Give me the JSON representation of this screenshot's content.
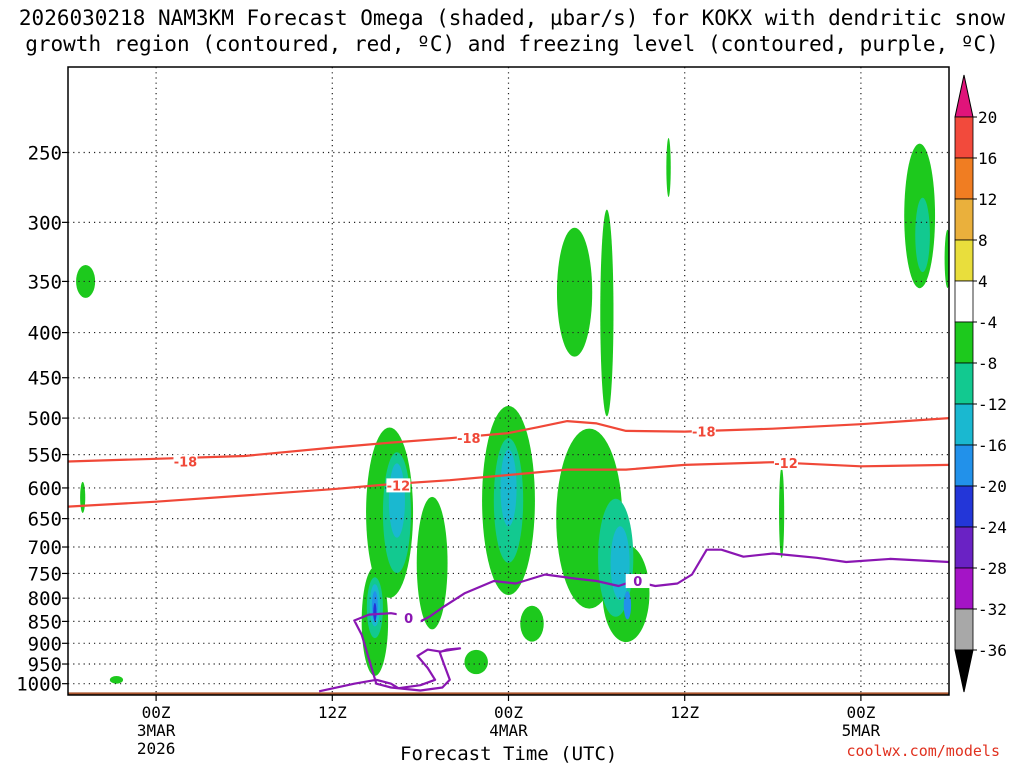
{
  "title_line1": "2026030218 NAM3KM Forecast Omega (shaded, µbar/s) for KOKX with dendritic snow",
  "title_line2": "growth region (contoured, red, ºC) and freezing level (contoured, purple, ºC)",
  "credit": "coolwx.com/models",
  "chart_data": {
    "type": "heatmap",
    "title": "2026030218 NAM3KM Forecast Omega (shaded, µbar/s) for KOKX with dendritic snow growth region (contoured, red, ºC) and freezing level (contoured, purple, ºC)",
    "xlabel": "Forecast Time (UTC)",
    "ylabel": "",
    "x_units": "hours since 2026-03-02 18Z",
    "xlim": [
      0,
      60
    ],
    "y_scale": "log-pressure",
    "ylim": [
      1030,
      200
    ],
    "grid": true,
    "x_ticks": [
      {
        "x": 6,
        "lines": [
          "00Z",
          "3MAR",
          "2026"
        ]
      },
      {
        "x": 18,
        "lines": [
          "12Z"
        ]
      },
      {
        "x": 30,
        "lines": [
          "00Z",
          "4MAR"
        ]
      },
      {
        "x": 42,
        "lines": [
          "12Z"
        ]
      },
      {
        "x": 54,
        "lines": [
          "00Z",
          "5MAR"
        ]
      }
    ],
    "y_ticks": [
      250,
      300,
      350,
      400,
      450,
      500,
      550,
      600,
      650,
      700,
      750,
      800,
      850,
      900,
      950,
      1000
    ],
    "colorbar": {
      "labels": [
        "20",
        "16",
        "12",
        "8",
        "4",
        "-4",
        "-8",
        "-12",
        "-16",
        "-20",
        "-24",
        "-28",
        "-32",
        "-36"
      ],
      "bins": [
        {
          "lo": 16,
          "hi": 20,
          "color": "#f24a3c"
        },
        {
          "lo": 12,
          "hi": 16,
          "color": "#f07d22"
        },
        {
          "lo": 8,
          "hi": 12,
          "color": "#eab03c"
        },
        {
          "lo": 4,
          "hi": 8,
          "color": "#e9de3c"
        },
        {
          "lo": -4,
          "hi": 4,
          "color": "#ffffff"
        },
        {
          "lo": -8,
          "hi": -4,
          "color": "#1dc91d"
        },
        {
          "lo": -12,
          "hi": -8,
          "color": "#12c990"
        },
        {
          "lo": -16,
          "hi": -12,
          "color": "#1ab8d0"
        },
        {
          "lo": -20,
          "hi": -16,
          "color": "#2291ea"
        },
        {
          "lo": -24,
          "hi": -20,
          "color": "#2336d8"
        },
        {
          "lo": -28,
          "hi": -24,
          "color": "#6a22c4"
        },
        {
          "lo": -32,
          "hi": -28,
          "color": "#a414c6"
        },
        {
          "lo": -36,
          "hi": -32,
          "color": "#a8a8a8"
        }
      ],
      "over_color": "#e0147a",
      "under_color": "#000000"
    },
    "omega_features": [
      {
        "bin": 4,
        "x": 0.1,
        "p": 265,
        "w": 0.35,
        "h": 45
      },
      {
        "bin": 4,
        "x": 6.7,
        "p": 490,
        "w": 1.1,
        "h": 55
      },
      {
        "bin": 4,
        "x": 29.3,
        "p": 300,
        "w": 0.5,
        "h": 70
      },
      {
        "bin": 4,
        "x": 47.1,
        "p": 320,
        "w": 2.6,
        "h": 45
      },
      {
        "bin": 4,
        "x": 45.8,
        "p": 455,
        "w": 1.2,
        "h": 110
      },
      {
        "bin": 4,
        "x": 55.2,
        "p": 415,
        "w": 0.6,
        "h": 90
      },
      {
        "bin": 4,
        "x": 59.1,
        "p": 230,
        "w": 0.5,
        "h": 30
      },
      {
        "bin": 4,
        "x": 2.9,
        "p": 860,
        "w": 3.2,
        "h": 80
      },
      {
        "bin": 4,
        "x": 34.2,
        "p": 830,
        "w": 0.7,
        "h": 120
      },
      {
        "bin": 4,
        "x": 42.5,
        "p": 900,
        "w": 0.9,
        "h": 90
      },
      {
        "bin": 4,
        "x": 32.3,
        "p": 975,
        "w": 1.4,
        "h": 20
      },
      {
        "bin": 4,
        "x": 59.6,
        "p": 840,
        "w": 0.6,
        "h": 80
      },
      {
        "bin": 4,
        "x": 59.3,
        "p": 720,
        "w": 0.3,
        "h": 70
      },
      {
        "bin": 4,
        "x": 39.8,
        "p": 560,
        "w": 0.3,
        "h": 25
      },
      {
        "bin": 5,
        "x": 1.2,
        "p": 350,
        "w": 1.3,
        "h": 30
      },
      {
        "bin": 5,
        "x": 1.0,
        "p": 615,
        "w": 0.35,
        "h": 50
      },
      {
        "bin": 5,
        "x": 3.3,
        "p": 990,
        "w": 0.9,
        "h": 20
      },
      {
        "bin": 5,
        "x": 34.5,
        "p": 360,
        "w": 2.4,
        "h": 120
      },
      {
        "bin": 5,
        "x": 36.7,
        "p": 380,
        "w": 0.9,
        "h": 200
      },
      {
        "bin": 5,
        "x": 40.9,
        "p": 260,
        "w": 0.3,
        "h": 40
      },
      {
        "bin": 5,
        "x": 58.0,
        "p": 295,
        "w": 2.1,
        "h": 110
      },
      {
        "bin": 5,
        "x": 59.9,
        "p": 330,
        "w": 0.4,
        "h": 50
      },
      {
        "bin": 5,
        "x": 48.6,
        "p": 640,
        "w": 0.35,
        "h": 150
      },
      {
        "bin": 5,
        "x": 21.9,
        "p": 640,
        "w": 3.2,
        "h": 280
      },
      {
        "bin": 5,
        "x": 24.8,
        "p": 730,
        "w": 2.1,
        "h": 250
      },
      {
        "bin": 5,
        "x": 20.9,
        "p": 850,
        "w": 1.8,
        "h": 240
      },
      {
        "bin": 5,
        "x": 30.0,
        "p": 620,
        "w": 3.6,
        "h": 300
      },
      {
        "bin": 5,
        "x": 35.5,
        "p": 650,
        "w": 4.5,
        "h": 300
      },
      {
        "bin": 5,
        "x": 31.6,
        "p": 855,
        "w": 1.6,
        "h": 80
      },
      {
        "bin": 5,
        "x": 27.8,
        "p": 945,
        "w": 1.6,
        "h": 60
      },
      {
        "bin": 5,
        "x": 38.0,
        "p": 790,
        "w": 3.2,
        "h": 200
      },
      {
        "bin": 6,
        "x": 22.4,
        "p": 640,
        "w": 1.9,
        "h": 200
      },
      {
        "bin": 6,
        "x": 30.0,
        "p": 620,
        "w": 2.0,
        "h": 200
      },
      {
        "bin": 6,
        "x": 37.3,
        "p": 720,
        "w": 2.4,
        "h": 220
      },
      {
        "bin": 6,
        "x": 20.9,
        "p": 820,
        "w": 1.1,
        "h": 130
      },
      {
        "bin": 6,
        "x": 58.2,
        "p": 310,
        "w": 1.0,
        "h": 60
      },
      {
        "bin": 7,
        "x": 22.4,
        "p": 620,
        "w": 1.1,
        "h": 120
      },
      {
        "bin": 7,
        "x": 30.0,
        "p": 600,
        "w": 1.1,
        "h": 120
      },
      {
        "bin": 7,
        "x": 37.6,
        "p": 730,
        "w": 1.3,
        "h": 140
      },
      {
        "bin": 7,
        "x": 20.9,
        "p": 815,
        "w": 0.7,
        "h": 90
      },
      {
        "bin": 8,
        "x": 20.9,
        "p": 815,
        "w": 0.4,
        "h": 60
      },
      {
        "bin": 8,
        "x": 38.1,
        "p": 815,
        "w": 0.5,
        "h": 60
      },
      {
        "bin": 9,
        "x": 20.9,
        "p": 830,
        "w": 0.22,
        "h": 40
      }
    ],
    "contours": {
      "dgz_minus18": {
        "label": "-18",
        "color": "#f04838",
        "x": [
          0,
          6,
          12,
          18,
          22,
          26,
          30,
          32,
          34,
          36,
          38,
          42,
          48,
          54,
          60
        ],
        "p": [
          560,
          556,
          552,
          540,
          533,
          527,
          520,
          512,
          504,
          507,
          517,
          518,
          514,
          508,
          500
        ],
        "label_positions": [
          [
            8,
            560
          ],
          [
            27.3,
            527
          ],
          [
            43.3,
            518
          ]
        ]
      },
      "dgz_minus12": {
        "label": "-12",
        "color": "#f04838",
        "x": [
          0,
          6,
          12,
          18,
          22,
          26,
          30,
          34,
          38,
          42,
          48,
          54,
          60
        ],
        "p": [
          630,
          622,
          612,
          602,
          594,
          588,
          580,
          572,
          572,
          565,
          561,
          567,
          565
        ],
        "label_positions": [
          [
            22.5,
            596
          ],
          [
            48.9,
            562
          ]
        ]
      },
      "freezing_level": {
        "label": "0",
        "color": "#8a16b2",
        "x": [
          24.6,
          25.5,
          27.0,
          29.0,
          30.5,
          32.5,
          34.5,
          36.0,
          37.5,
          38.5,
          40.0,
          41.5,
          42.5,
          43.5,
          44.5,
          46.0,
          48.0,
          51.0,
          53.0,
          56.0,
          60.0
        ],
        "p": [
          840,
          820,
          790,
          765,
          770,
          752,
          760,
          765,
          775,
          765,
          775,
          770,
          752,
          705,
          705,
          718,
          712,
          720,
          728,
          722,
          728
        ],
        "label_positions": [
          [
            38.8,
            765
          ]
        ]
      },
      "freezing_low": {
        "label": "0",
        "color": "#8a16b2",
        "x": [
          17.1,
          19.5,
          21.0,
          22.0,
          22.5,
          24.0,
          25.0,
          24.5,
          23.8,
          24.5,
          25.4,
          25.8,
          26.7,
          25.3,
          25.6,
          26.0,
          25.5,
          24.0,
          22.0,
          21.0,
          20.0,
          19.5,
          20.5,
          22.0,
          23.5,
          24.0,
          24.6
        ],
        "p": [
          1020,
          1000,
          990,
          1000,
          1012,
          1004,
          990,
          960,
          930,
          915,
          920,
          915,
          912,
          920,
          950,
          990,
          1010,
          1018,
          1010,
          1000,
          880,
          848,
          835,
          832,
          840,
          850,
          840
        ],
        "label_positions": [
          [
            23.2,
            842
          ]
        ]
      }
    },
    "terrain_fill": {
      "color": "#a9552c",
      "p_top": 1023
    }
  }
}
